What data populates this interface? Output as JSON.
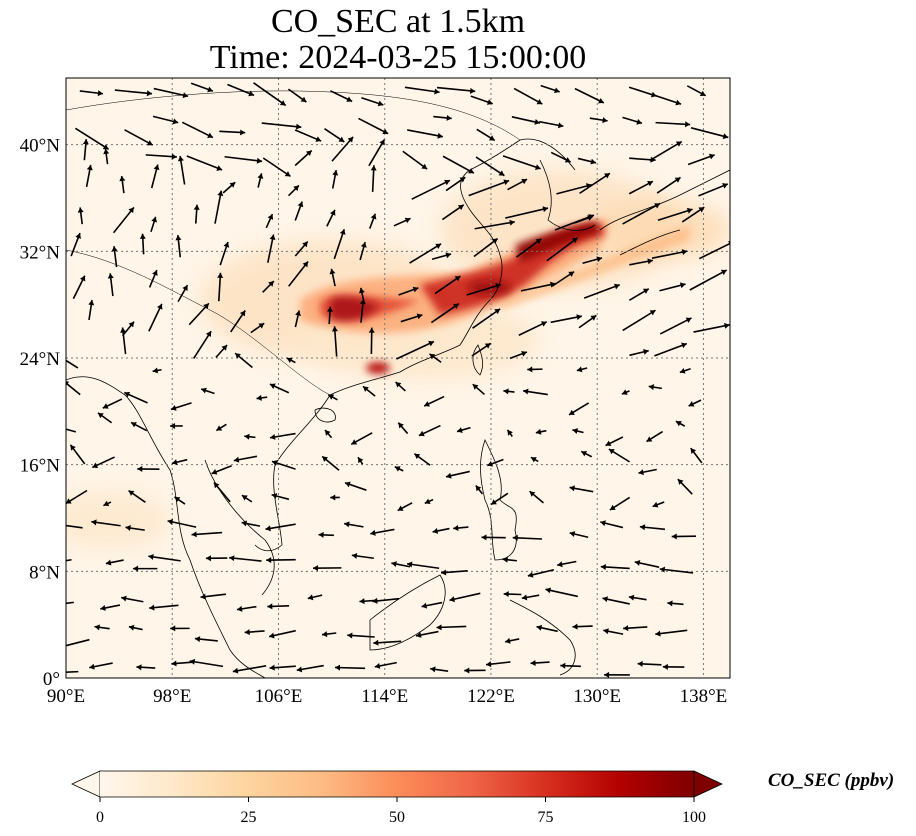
{
  "title": {
    "line1": "CO_SEC at 1.5km",
    "line2": "Time: 2024-03-25 15:00:00"
  },
  "map": {
    "projection": "PlateCarree",
    "lon_range": [
      90,
      140
    ],
    "lat_range": [
      0,
      45
    ],
    "xticks": [
      {
        "value": 90,
        "label": "90°E"
      },
      {
        "value": 98,
        "label": "98°E"
      },
      {
        "value": 106,
        "label": "106°E"
      },
      {
        "value": 114,
        "label": "114°E"
      },
      {
        "value": 122,
        "label": "122°E"
      },
      {
        "value": 130,
        "label": "130°E"
      },
      {
        "value": 138,
        "label": "138°E"
      }
    ],
    "yticks": [
      {
        "value": 0,
        "label": "0°"
      },
      {
        "value": 8,
        "label": "8°N"
      },
      {
        "value": 16,
        "label": "16°N"
      },
      {
        "value": 24,
        "label": "24°N"
      },
      {
        "value": 32,
        "label": "32°N"
      },
      {
        "value": 40,
        "label": "40°N"
      }
    ],
    "gridlines": true,
    "field_colormap": "OrRd",
    "plumes": [
      {
        "lon": 114.5,
        "lat": 28.0,
        "value": 100
      },
      {
        "lon": 120.5,
        "lat": 30.5,
        "value": 95
      },
      {
        "lon": 124.0,
        "lat": 31.5,
        "value": 100
      },
      {
        "lon": 126.5,
        "lat": 33.5,
        "value": 100
      },
      {
        "lon": 113.5,
        "lat": 23.0,
        "value": 90
      },
      {
        "lon": 118.0,
        "lat": 28.5,
        "value": 75
      }
    ]
  },
  "colorbar": {
    "label": "CO_SEC (ppbv)",
    "min": 0,
    "max": 100,
    "extend": "both",
    "ticks": [
      {
        "value": 0,
        "label": "0"
      },
      {
        "value": 25,
        "label": "25"
      },
      {
        "value": 50,
        "label": "50"
      },
      {
        "value": 75,
        "label": "75"
      },
      {
        "value": 100,
        "label": "100"
      }
    ],
    "colors": [
      "#fff7ec",
      "#fee8c8",
      "#fdd49e",
      "#fdbb84",
      "#fc8d59",
      "#ef6548",
      "#d7301f",
      "#b30000",
      "#7f0000"
    ]
  }
}
